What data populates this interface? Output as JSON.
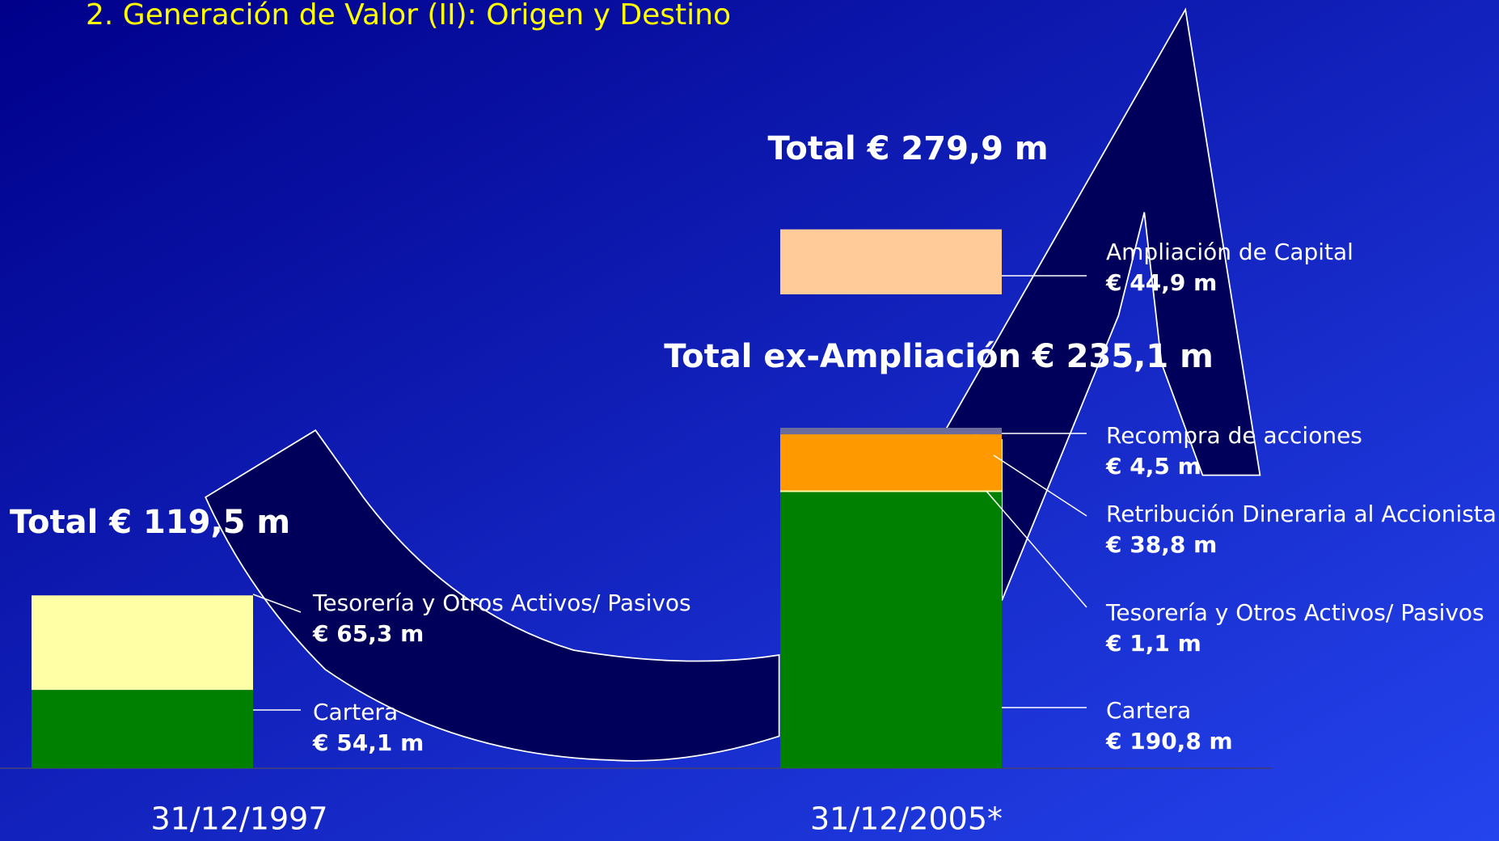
{
  "chart_data": {
    "type": "bar",
    "stacked": true,
    "title": "2. Generación de Valor (II): Origen y Destino",
    "categories": [
      "31/12/1997",
      "31/12/2005*"
    ],
    "series": [
      {
        "name": "Cartera",
        "color": "#008000",
        "values": [
          54.1,
          190.8
        ],
        "value_labels": [
          "€ 54,1 m",
          "€ 190,8 m"
        ]
      },
      {
        "name": "Tesorería y Otros Activos/ Pasivos",
        "color": "#ffffa6",
        "values": [
          65.3,
          1.1
        ],
        "value_labels": [
          "€ 65,3 m",
          "€ 1,1 m"
        ]
      },
      {
        "name": "Retribución Dineraria al Accionista",
        "color": "#ff9900",
        "values": [
          null,
          38.8
        ],
        "value_labels": [
          null,
          "€ 38,8 m"
        ]
      },
      {
        "name": "Recompra de acciones",
        "color": "#6b6b9c",
        "values": [
          null,
          4.5
        ],
        "value_labels": [
          null,
          "€ 4,5 m"
        ]
      },
      {
        "name": "Ampliación de Capital",
        "color": "#ffcc99",
        "values": [
          null,
          44.9
        ],
        "value_labels": [
          null,
          "€ 44,9 m"
        ]
      }
    ],
    "annotations": [
      "Total € 119,5 m",
      "Total ex-Ampliación € 235,1 m",
      "Total € 279,9 m"
    ]
  }
}
